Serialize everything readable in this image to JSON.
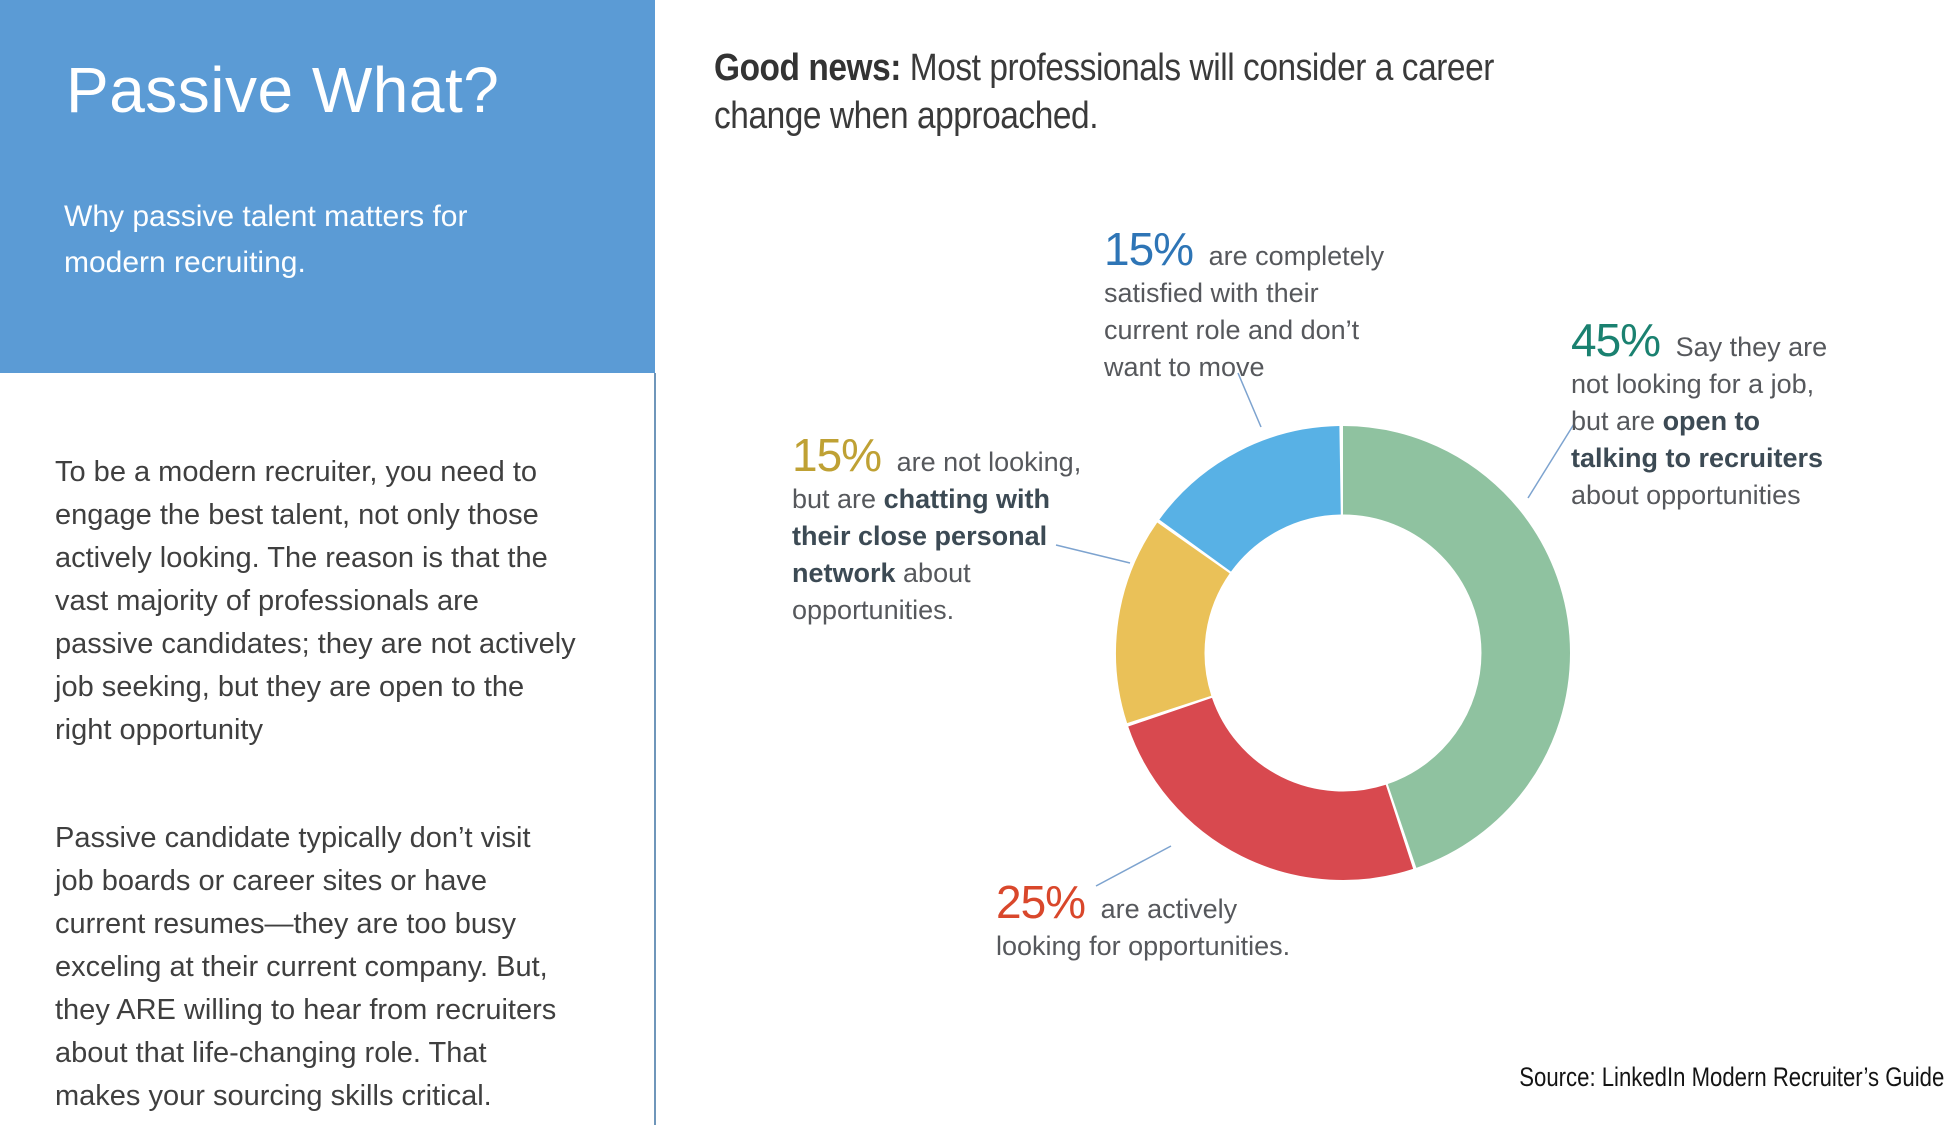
{
  "slide": {
    "header": {
      "title": "Passive What?",
      "subtitle": "Why passive talent matters for\nmodern recruiting.",
      "background_color": "#5b9bd5"
    },
    "body": {
      "paragraph1": "To be a modern recruiter, you need to\nengage the best talent, not only those\nactively looking. The reason is that the\nvast majority of professionals are\npassive candidates; they are not actively\njob seeking, but they are open to the\nright opportunity",
      "paragraph2": "Passive candidate typically don’t visit\njob boards or career sites or have\ncurrent resumes—they are too busy\nexceling at their current company. But,\nthey ARE willing to hear from recruiters\nabout that life-changing role. That\nmakes your sourcing skills critical."
    },
    "good_news": {
      "lead": "Good news:",
      "rest": " Most professionals will consider a career\nchange when approached."
    },
    "source": "Source: LinkedIn Modern Recruiter’s Guide",
    "divider_color": "#6f96ba",
    "leader_line_color": "#7da3cf"
  },
  "annotations": {
    "top": {
      "pct": "15%",
      "pct_color": "#2e75b6",
      "l1": " are completely",
      "l2": "satisfied with their",
      "l3": "current role and don’t",
      "l4": "want to move"
    },
    "right": {
      "pct": "45%",
      "pct_color": "#1a8170",
      "l1": " Say they are",
      "l2": "not looking for a job,",
      "l3a": "but are ",
      "l3b": "open to",
      "l4b": "talking to recruiters",
      "l5": "about opportunities"
    },
    "left": {
      "pct": "15%",
      "pct_color": "#bfa134",
      "l1": " are not looking,",
      "l2a": "but are ",
      "l2b": "chatting with",
      "l3b": "their close personal",
      "l4b": "network",
      "l4a": " about",
      "l5": "opportunities."
    },
    "bottom": {
      "pct": "25%",
      "pct_color": "#d9472b",
      "l1": " are actively",
      "l2": "looking for opportunities."
    }
  },
  "chart_data": {
    "type": "pie",
    "subtype": "donut",
    "title": "Good news: Most professionals will consider a career change when approached.",
    "start_angle_deg": 0,
    "direction": "clockwise",
    "inner_radius_ratio": 0.61,
    "legend_position": "callout-labels",
    "segments": [
      {
        "label": "Say they are not looking for a job, but are open to talking to recruiters about opportunities",
        "value": 45,
        "color": "#8fc2a0"
      },
      {
        "label": "are actively looking for opportunities.",
        "value": 25,
        "color": "#d8494f"
      },
      {
        "label": "are not looking, but are chatting with their close personal network about opportunities.",
        "value": 15,
        "color": "#eac158"
      },
      {
        "label": "are completely satisfied with their current role and don’t want to move",
        "value": 15,
        "color": "#58b1e5"
      }
    ]
  }
}
